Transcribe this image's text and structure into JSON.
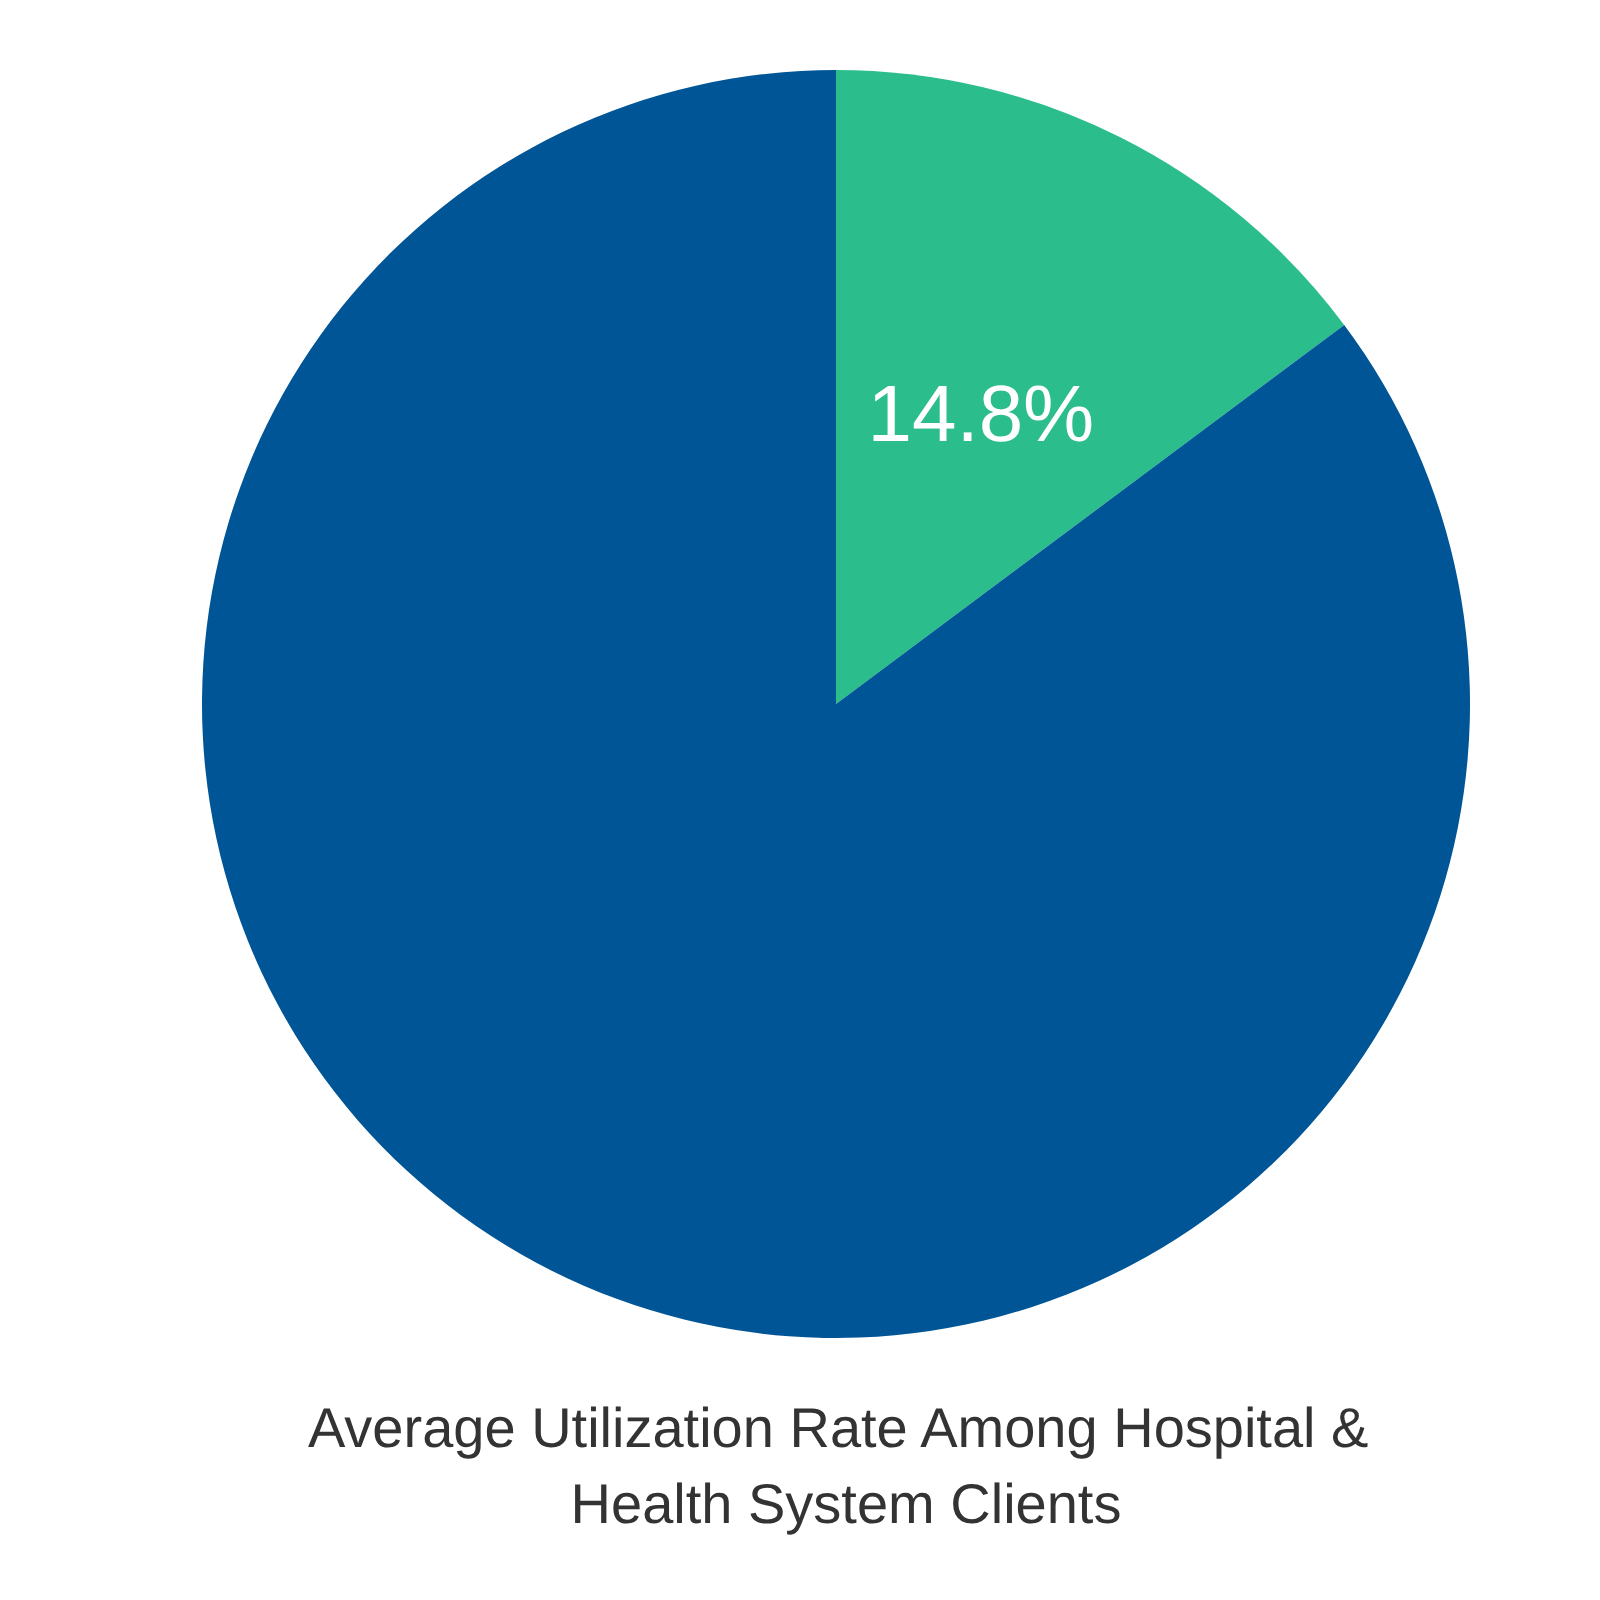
{
  "chart_data": {
    "type": "pie",
    "title": "Average Utilization Rate Among Hospital & Health System Clients",
    "categories": [
      null,
      null
    ],
    "values": [
      14.8,
      85.2
    ],
    "colors": [
      "#2bbd8c",
      "#005596"
    ],
    "value_labels": [
      "14.8%",
      null
    ]
  }
}
